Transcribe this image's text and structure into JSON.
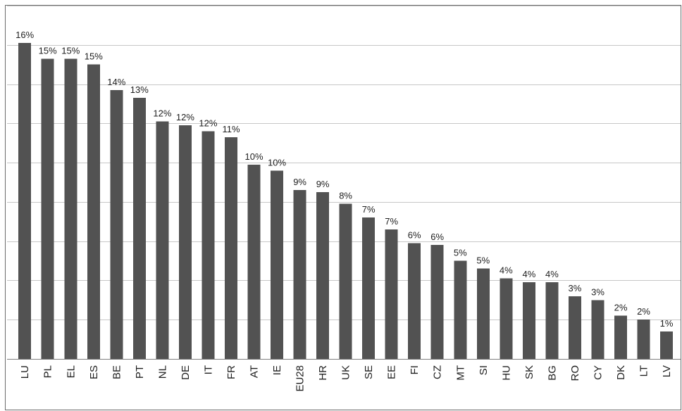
{
  "chart_data": {
    "type": "bar",
    "categories": [
      "LU",
      "PL",
      "EL",
      "ES",
      "BE",
      "PT",
      "NL",
      "DE",
      "IT",
      "FR",
      "AT",
      "IE",
      "EU28",
      "HR",
      "UK",
      "SE",
      "EE",
      "FI",
      "CZ",
      "MT",
      "SI",
      "HU",
      "SK",
      "BG",
      "RO",
      "CY",
      "DK",
      "LT",
      "LV"
    ],
    "values": [
      16.1,
      15.3,
      15.3,
      15.0,
      13.7,
      13.3,
      12.1,
      11.9,
      11.6,
      11.3,
      9.9,
      9.6,
      8.6,
      8.5,
      7.9,
      7.2,
      6.6,
      5.9,
      5.8,
      5.0,
      4.6,
      4.1,
      3.9,
      3.9,
      3.2,
      3.0,
      2.2,
      2.0,
      1.4
    ],
    "data_labels": [
      "16%",
      "15%",
      "15%",
      "15%",
      "14%",
      "13%",
      "12%",
      "12%",
      "12%",
      "11%",
      "10%",
      "10%",
      "9%",
      "9%",
      "8%",
      "7%",
      "7%",
      "6%",
      "6%",
      "5%",
      "5%",
      "4%",
      "4%",
      "4%",
      "3%",
      "3%",
      "2%",
      "2%",
      "1%"
    ],
    "ylim": [
      0,
      18
    ],
    "gridline_step": 2,
    "grid": true,
    "title": "",
    "xlabel": "",
    "ylabel": "",
    "bar_color": "#525252",
    "grid_color": "#c7c7c7"
  }
}
